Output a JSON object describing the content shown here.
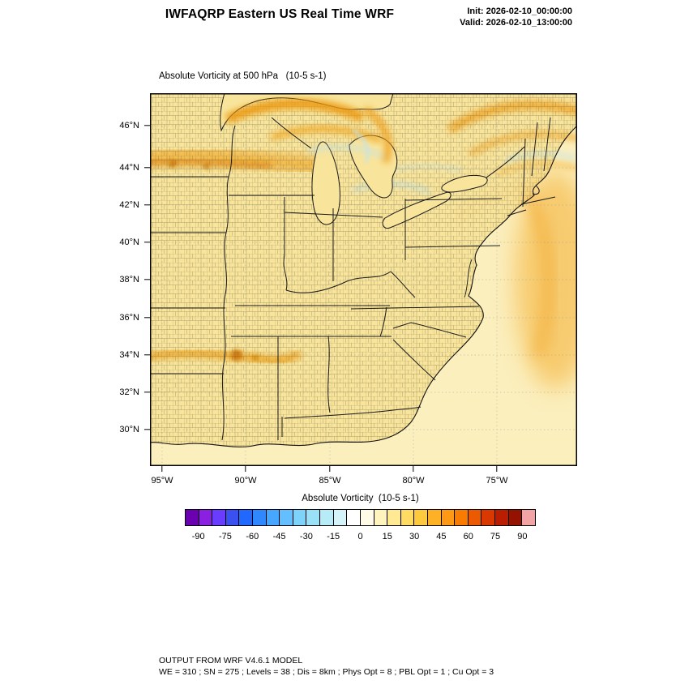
{
  "header": {
    "title": "IWFAQRP Eastern US Real Time WRF",
    "init_line": "Init: 2026-02-10_00:00:00",
    "valid_line": "Valid: 2026-02-10_13:00:00"
  },
  "map": {
    "field_title": "Absolute Vorticity at 500 hPa   (10-5 s-1)",
    "lat_tick_labels": [
      "46°N",
      "44°N",
      "42°N",
      "40°N",
      "38°N",
      "36°N",
      "34°N",
      "32°N",
      "30°N"
    ],
    "lon_tick_labels": [
      "95°W",
      "90°W",
      "85°W",
      "80°W",
      "75°W"
    ]
  },
  "colorbar": {
    "label": "Absolute Vorticity  (10-5 s-1)",
    "tick_labels": [
      "-90",
      "-75",
      "-60",
      "-45",
      "-30",
      "-15",
      "0",
      "15",
      "30",
      "45",
      "60",
      "75",
      "90"
    ],
    "colors": [
      "#6A00B0",
      "#8A20E0",
      "#6A3CFF",
      "#3A50F0",
      "#2068FF",
      "#2F88FF",
      "#47A6FF",
      "#63BFFF",
      "#7ED3FA",
      "#9AE1F7",
      "#B7EBF8",
      "#D5F4FA",
      "#FFFFFF",
      "#FFFBE6",
      "#FFF3BE",
      "#FFE992",
      "#FFDB64",
      "#FFC93E",
      "#FFB125",
      "#FF9812",
      "#F97C02",
      "#EB5A00",
      "#D93900",
      "#BB1D00",
      "#941200",
      "#F2A3A3"
    ]
  },
  "footer": {
    "line1": "OUTPUT FROM WRF V4.6.1 MODEL",
    "line2": "WE = 310 ; SN = 275 ; Levels = 38 ; Dis = 8km ; Phys Opt = 8 ; PBL Opt = 1 ; Cu Opt = 3"
  },
  "chart_data": {
    "type": "heatmap",
    "title": "Absolute Vorticity at 500 hPa (10-5 s-1)",
    "region": "Eastern US (WRF model domain with state and county boundaries)",
    "x_ticks": [
      "95°W",
      "90°W",
      "85°W",
      "80°W",
      "75°W"
    ],
    "y_ticks": [
      "46°N",
      "44°N",
      "42°N",
      "40°N",
      "38°N",
      "36°N",
      "34°N",
      "32°N",
      "30°N"
    ],
    "colorbar": {
      "label": "Absolute Vorticity  (10-5 s-1)",
      "ticks": [
        -90,
        -75,
        -60,
        -45,
        -30,
        -15,
        0,
        15,
        30,
        45,
        60,
        75,
        90
      ],
      "range": [
        -90,
        90
      ]
    },
    "legend_position": "bottom",
    "grid": "faint lat/lon graticule",
    "field_summary": [
      {
        "feature": "background field",
        "approx_value": "5 to 20",
        "color": "pale yellow",
        "location": "most of the domain, land and ocean"
      },
      {
        "feature": "zonal vorticity band",
        "approx_value": "30 to 55",
        "color": "orange",
        "location": "along ~44°N from 95°W eastward to Lake Michigan"
      },
      {
        "feature": "vorticity maximum swirl",
        "approx_value": "40 to 70",
        "color": "deep orange",
        "location": "over Lake Superior and northern Michigan"
      },
      {
        "feature": "curved vorticity bands",
        "approx_value": "30 to 50",
        "color": "orange",
        "location": "northeast corner of domain, north of 44°N"
      },
      {
        "feature": "offshore band",
        "approx_value": "25 to 40",
        "color": "light orange",
        "location": "Atlantic, east of 75°W between 34°N and 44°N"
      },
      {
        "feature": "vorticity streak",
        "approx_value": "30 to 60",
        "color": "orange with dark core",
        "location": "~34.5°N near 90°W (Arkansas/Tennessee)"
      },
      {
        "feature": "weak negative patches",
        "approx_value": "-5 to -15",
        "color": "light blue",
        "location": "near and south of the Great Lakes"
      }
    ]
  }
}
